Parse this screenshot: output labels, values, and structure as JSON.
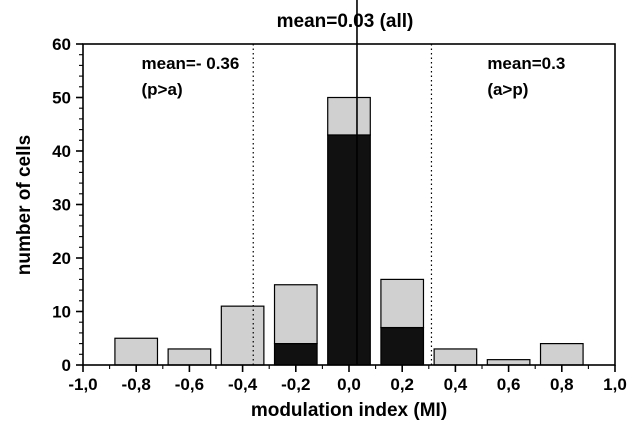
{
  "chart_data": {
    "type": "bar",
    "title": "mean=0.03 (all)",
    "xlabel": "modulation index (MI)",
    "ylabel": "number of cells",
    "xlim": [
      -1.0,
      1.0
    ],
    "ylim": [
      0,
      60
    ],
    "xticks": [
      -1.0,
      -0.8,
      -0.6,
      -0.4,
      -0.2,
      0.0,
      0.2,
      0.4,
      0.6,
      0.8,
      1.0
    ],
    "xtick_labels": [
      "-1,0",
      "-0,8",
      "-0,6",
      "-0,4",
      "-0,2",
      "0,0",
      "0,2",
      "0,4",
      "0,6",
      "0,8",
      "1,0"
    ],
    "yticks": [
      0,
      10,
      20,
      30,
      40,
      50,
      60
    ],
    "ytick_labels": [
      "0",
      "10",
      "20",
      "30",
      "40",
      "50",
      "60"
    ],
    "bin_centers": [
      -0.8,
      -0.6,
      -0.4,
      -0.2,
      0.0,
      0.2,
      0.4,
      0.6,
      0.8
    ],
    "bin_width": 0.16,
    "series": [
      {
        "values": [
          0,
          0,
          0,
          4,
          43,
          7,
          0,
          0,
          0
        ],
        "color": "#111111"
      },
      {
        "values": [
          5,
          3,
          11,
          11,
          7,
          9,
          3,
          1,
          4
        ],
        "color": "#d0d0d0"
      }
    ],
    "totals": [
      5,
      3,
      11,
      15,
      50,
      16,
      3,
      1,
      4
    ],
    "reference_lines": [
      {
        "x": -0.36,
        "style": "dotted"
      },
      {
        "x": 0.03,
        "style": "solid"
      },
      {
        "x": 0.31,
        "style": "dotted"
      }
    ],
    "annotations": [
      {
        "line1": "mean=- 0.36",
        "line2": "(p>a)",
        "anchor_x": -0.78
      },
      {
        "line1": "mean=0.3",
        "line2": "(a>p)",
        "anchor_x": 0.52
      }
    ],
    "grid": false,
    "legend": "none",
    "colors": {
      "stacked_base": "#111111",
      "stacked_top": "#d0d0d0",
      "outline": "#000000"
    }
  }
}
